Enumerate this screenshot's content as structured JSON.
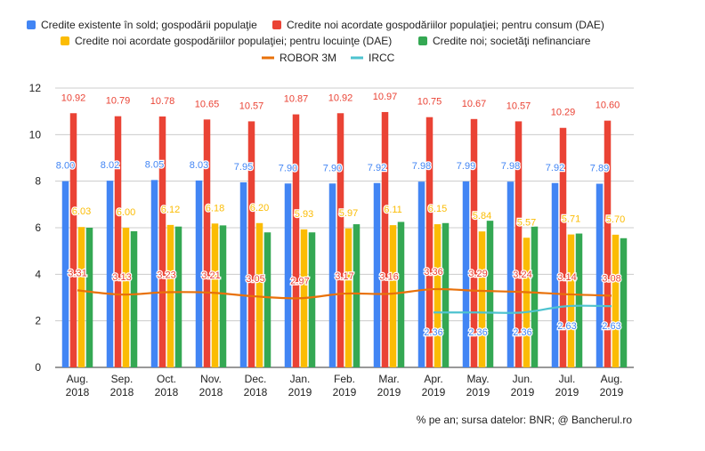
{
  "chart_data": {
    "type": "bar",
    "title": "",
    "xlabel": "",
    "ylabel": "",
    "ylim": [
      0,
      12
    ],
    "yticks": [
      0,
      2,
      4,
      6,
      8,
      10,
      12
    ],
    "grid": true,
    "legend_position": "top",
    "categories": [
      [
        "Aug.",
        "2018"
      ],
      [
        "Sep.",
        "2018"
      ],
      [
        "Oct.",
        "2018"
      ],
      [
        "Nov.",
        "2018"
      ],
      [
        "Dec.",
        "2018"
      ],
      [
        "Jan.",
        "2019"
      ],
      [
        "Feb.",
        "2019"
      ],
      [
        "Mar.",
        "2019"
      ],
      [
        "Apr.",
        "2019"
      ],
      [
        "May.",
        "2019"
      ],
      [
        "Jun.",
        "2019"
      ],
      [
        "Jul.",
        "2019"
      ],
      [
        "Aug.",
        "2019"
      ]
    ],
    "bar_series": [
      {
        "name": "Credite existente în sold; gospodării populaţie",
        "color": "#4285f4",
        "values": [
          8.0,
          8.02,
          8.05,
          8.03,
          7.95,
          7.9,
          7.9,
          7.92,
          7.98,
          7.99,
          7.98,
          7.92,
          7.89
        ],
        "labels": [
          "8.00",
          "8.02",
          "8.05",
          "8.03",
          "7.95",
          "7.90",
          "7.90",
          "7.92",
          "7.98",
          "7.99",
          "7.98",
          "7.92",
          "7.89"
        ]
      },
      {
        "name": "Credite noi acordate gospodăriilor populaţiei; pentru consum (DAE)",
        "color": "#ea4335",
        "values": [
          10.92,
          10.79,
          10.78,
          10.65,
          10.57,
          10.87,
          10.92,
          10.97,
          10.75,
          10.67,
          10.57,
          10.29,
          10.6
        ],
        "labels": [
          "10.92",
          "10.79",
          "10.78",
          "10.65",
          "10.57",
          "10.87",
          "10.92",
          "10.97",
          "10.75",
          "10.67",
          "10.57",
          "10.29",
          "10.60"
        ]
      },
      {
        "name": "Credite noi acordate gospodăriilor populaţiei; pentru locuinţe (DAE)",
        "color": "#fbbc04",
        "values": [
          6.03,
          6.0,
          6.12,
          6.18,
          6.2,
          5.93,
          5.97,
          6.11,
          6.15,
          5.84,
          5.57,
          5.71,
          5.7
        ],
        "labels": [
          "6.03",
          "6.00",
          "6.12",
          "6.18",
          "6.20",
          "5.93",
          "5.97",
          "6.11",
          "6.15",
          "5.84",
          "5.57",
          "5.71",
          "5.70"
        ]
      },
      {
        "name": "Credite noi; societăţi nefinanciare",
        "color": "#34a853",
        "values": [
          6.0,
          5.85,
          6.05,
          6.1,
          5.8,
          5.8,
          6.15,
          6.25,
          6.2,
          6.3,
          6.05,
          5.75,
          5.55
        ],
        "labels": []
      }
    ],
    "line_series": [
      {
        "name": "ROBOR 3M",
        "color": "#e8710a",
        "values": [
          3.31,
          3.13,
          3.23,
          3.21,
          3.05,
          2.97,
          3.17,
          3.16,
          3.36,
          3.29,
          3.24,
          3.14,
          3.08
        ],
        "labels": [
          "3.31",
          "3.13",
          "3.23",
          "3.21",
          "3.05",
          "2.97",
          "3.17",
          "3.16",
          "3.36",
          "3.29",
          "3.24",
          "3.14",
          "3.08"
        ]
      },
      {
        "name": "IRCC",
        "color": "#4ec3cf",
        "values": [
          null,
          null,
          null,
          null,
          null,
          null,
          null,
          null,
          2.36,
          2.36,
          2.36,
          2.63,
          2.63
        ],
        "labels": [
          "",
          "",
          "",
          "",
          "",
          "",
          "",
          "",
          "2.36",
          "2.36",
          "2.36",
          "2.63",
          "2.63"
        ]
      }
    ],
    "source_note": "% pe an; sursa datelor: BNR; @ Bancherul.ro"
  }
}
